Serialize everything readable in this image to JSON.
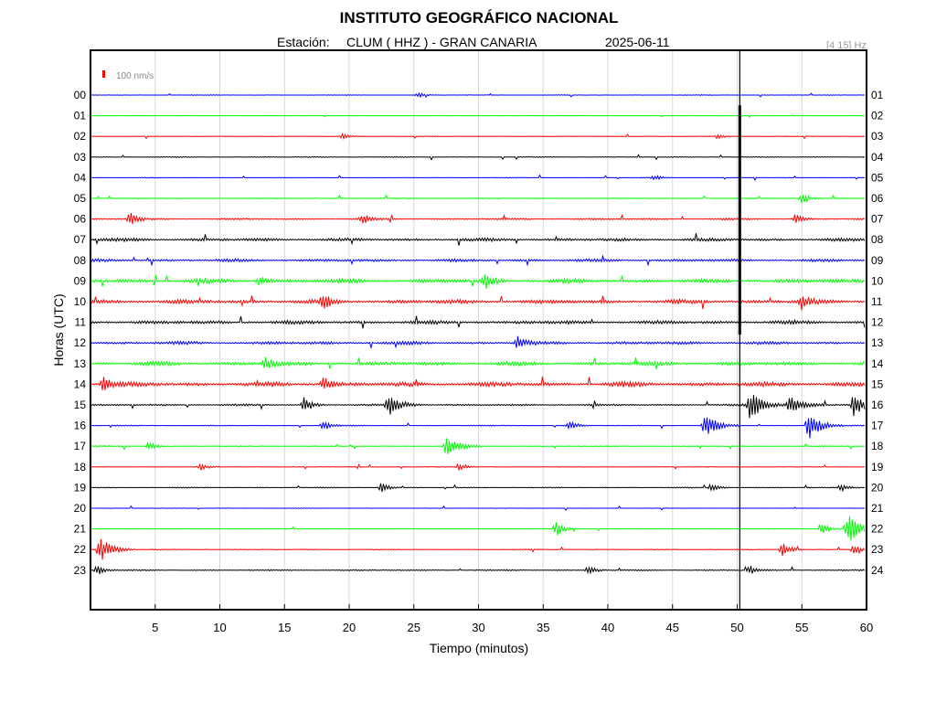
{
  "chart_data": {
    "type": "line",
    "title": "INSTITUTO GEOGRÁFICO NACIONAL",
    "station_label": "Estación:",
    "station": "CLUM ( HHZ ) - GRAN CANARIA",
    "date": "2025-06-11",
    "filter": "[4 15] Hz",
    "scale_label": "100 nm/s",
    "xlabel": "Tiempo (minutos)",
    "ylabel": "Horas (UTC)",
    "xlim": [
      0,
      60
    ],
    "x_ticks": [
      5,
      10,
      15,
      20,
      25,
      30,
      35,
      40,
      45,
      50,
      55,
      60
    ],
    "left_labels": [
      "00",
      "01",
      "02",
      "03",
      "04",
      "05",
      "06",
      "07",
      "08",
      "09",
      "10",
      "11",
      "12",
      "13",
      "14",
      "15",
      "16",
      "17",
      "18",
      "19",
      "20",
      "21",
      "22",
      "23"
    ],
    "right_labels": [
      "01",
      "02",
      "03",
      "04",
      "05",
      "06",
      "07",
      "08",
      "09",
      "10",
      "11",
      "12",
      "13",
      "14",
      "15",
      "16",
      "17",
      "18",
      "19",
      "20",
      "21",
      "22",
      "23",
      "24"
    ],
    "colors": [
      "#0000ff",
      "#00ff00",
      "#ff0000",
      "#000000"
    ],
    "noise_level": [
      0.4,
      0.3,
      0.4,
      0.6,
      0.5,
      0.7,
      1.2,
      2.0,
      1.8,
      2.6,
      2.6,
      2.3,
      2.0,
      2.5,
      2.8,
      1.2,
      0.6,
      0.7,
      0.5,
      0.6,
      0.3,
      0.4,
      0.6,
      0.8
    ],
    "events": [
      {
        "hour": 0,
        "minute": 25.3,
        "amp": 3
      },
      {
        "hour": 1,
        "minute": 50.2,
        "amp": 1
      },
      {
        "hour": 2,
        "minute": 19.5,
        "amp": 3
      },
      {
        "hour": 2,
        "minute": 48.5,
        "amp": 3
      },
      {
        "hour": 4,
        "minute": 43.5,
        "amp": 3
      },
      {
        "hour": 5,
        "minute": 55.0,
        "amp": 7
      },
      {
        "hour": 6,
        "minute": 3.0,
        "amp": 9
      },
      {
        "hour": 6,
        "minute": 21.0,
        "amp": 6
      },
      {
        "hour": 6,
        "minute": 54.5,
        "amp": 6
      },
      {
        "hour": 9,
        "minute": 30.5,
        "amp": 10
      },
      {
        "hour": 9,
        "minute": 13.0,
        "amp": 6
      },
      {
        "hour": 10,
        "minute": 18.0,
        "amp": 9
      },
      {
        "hour": 10,
        "minute": 55.0,
        "amp": 8
      },
      {
        "hour": 12,
        "minute": 33.0,
        "amp": 7
      },
      {
        "hour": 13,
        "minute": 13.5,
        "amp": 8
      },
      {
        "hour": 14,
        "minute": 1.0,
        "amp": 10
      },
      {
        "hour": 14,
        "minute": 18.0,
        "amp": 8
      },
      {
        "hour": 15,
        "minute": 16.5,
        "amp": 10
      },
      {
        "hour": 15,
        "minute": 23.0,
        "amp": 12
      },
      {
        "hour": 15,
        "minute": 51.0,
        "amp": 16
      },
      {
        "hour": 15,
        "minute": 54.0,
        "amp": 11
      },
      {
        "hour": 15,
        "minute": 59.0,
        "amp": 12
      },
      {
        "hour": 16,
        "minute": 47.5,
        "amp": 13
      },
      {
        "hour": 16,
        "minute": 55.5,
        "amp": 16
      },
      {
        "hour": 16,
        "minute": 18.0,
        "amp": 6
      },
      {
        "hour": 16,
        "minute": 37.0,
        "amp": 6
      },
      {
        "hour": 17,
        "minute": 27.5,
        "amp": 11
      },
      {
        "hour": 17,
        "minute": 4.5,
        "amp": 5
      },
      {
        "hour": 18,
        "minute": 8.5,
        "amp": 4
      },
      {
        "hour": 18,
        "minute": 28.5,
        "amp": 5
      },
      {
        "hour": 19,
        "minute": 22.5,
        "amp": 6
      },
      {
        "hour": 19,
        "minute": 48.0,
        "amp": 5
      },
      {
        "hour": 19,
        "minute": 58.0,
        "amp": 5
      },
      {
        "hour": 21,
        "minute": 36.0,
        "amp": 9
      },
      {
        "hour": 21,
        "minute": 58.5,
        "amp": 18
      },
      {
        "hour": 21,
        "minute": 56.5,
        "amp": 8
      },
      {
        "hour": 22,
        "minute": 0.7,
        "amp": 14
      },
      {
        "hour": 22,
        "minute": 53.5,
        "amp": 9
      },
      {
        "hour": 22,
        "minute": 59.0,
        "amp": 6
      },
      {
        "hour": 23,
        "minute": 38.5,
        "amp": 6
      },
      {
        "hour": 23,
        "minute": 0.5,
        "amp": 6
      },
      {
        "hour": 23,
        "minute": 51.0,
        "amp": 5
      }
    ],
    "spike": {
      "minute": 50.2,
      "from_hour": 0.5,
      "to_hour": 11.6
    }
  }
}
